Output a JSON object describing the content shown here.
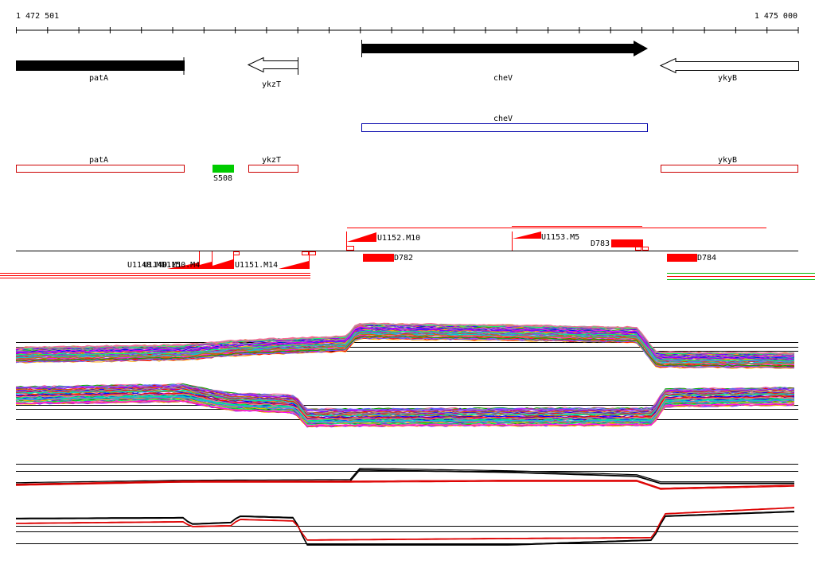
{
  "ruler": {
    "start_label": "1 472 501",
    "end_label": "1 475 000"
  },
  "genes": [
    {
      "name": "patA",
      "strand": "+",
      "style": "filled"
    },
    {
      "name": "ykzT",
      "strand": "-",
      "style": "outline"
    },
    {
      "name": "cheV",
      "strand": "+",
      "style": "filled"
    },
    {
      "name": "ykyB",
      "strand": "-",
      "style": "outline"
    }
  ],
  "transcripts": [
    {
      "name": "cheV",
      "color": "#0000aa"
    }
  ],
  "annotations": [
    {
      "name": "patA",
      "color": "#cc0000"
    },
    {
      "name": "S508",
      "color": "#00cc00"
    },
    {
      "name": "ykzT",
      "color": "#cc0000"
    },
    {
      "name": "ykyB",
      "color": "#cc0000"
    }
  ],
  "segments": {
    "labels": [
      "U1148.M1",
      "U1149.M1",
      "U1150.M4",
      "U1151.M14",
      "U1152.M10",
      "U1153.M5",
      "D782",
      "D783",
      "D784"
    ],
    "colors": {
      "segment": "#ff0000",
      "low_tail": "#00bb00"
    }
  },
  "tracks": {
    "colors": [
      "#ff0000",
      "#00aa00",
      "#0000ff",
      "#ff00ff",
      "#00cccc",
      "#ffaa00",
      "#8800ff",
      "#00ff66",
      "#cc6600",
      "#6666ff",
      "#999999",
      "#ff6699"
    ],
    "summary_colors": {
      "mean": "#000000",
      "model": "#dd0000"
    }
  }
}
